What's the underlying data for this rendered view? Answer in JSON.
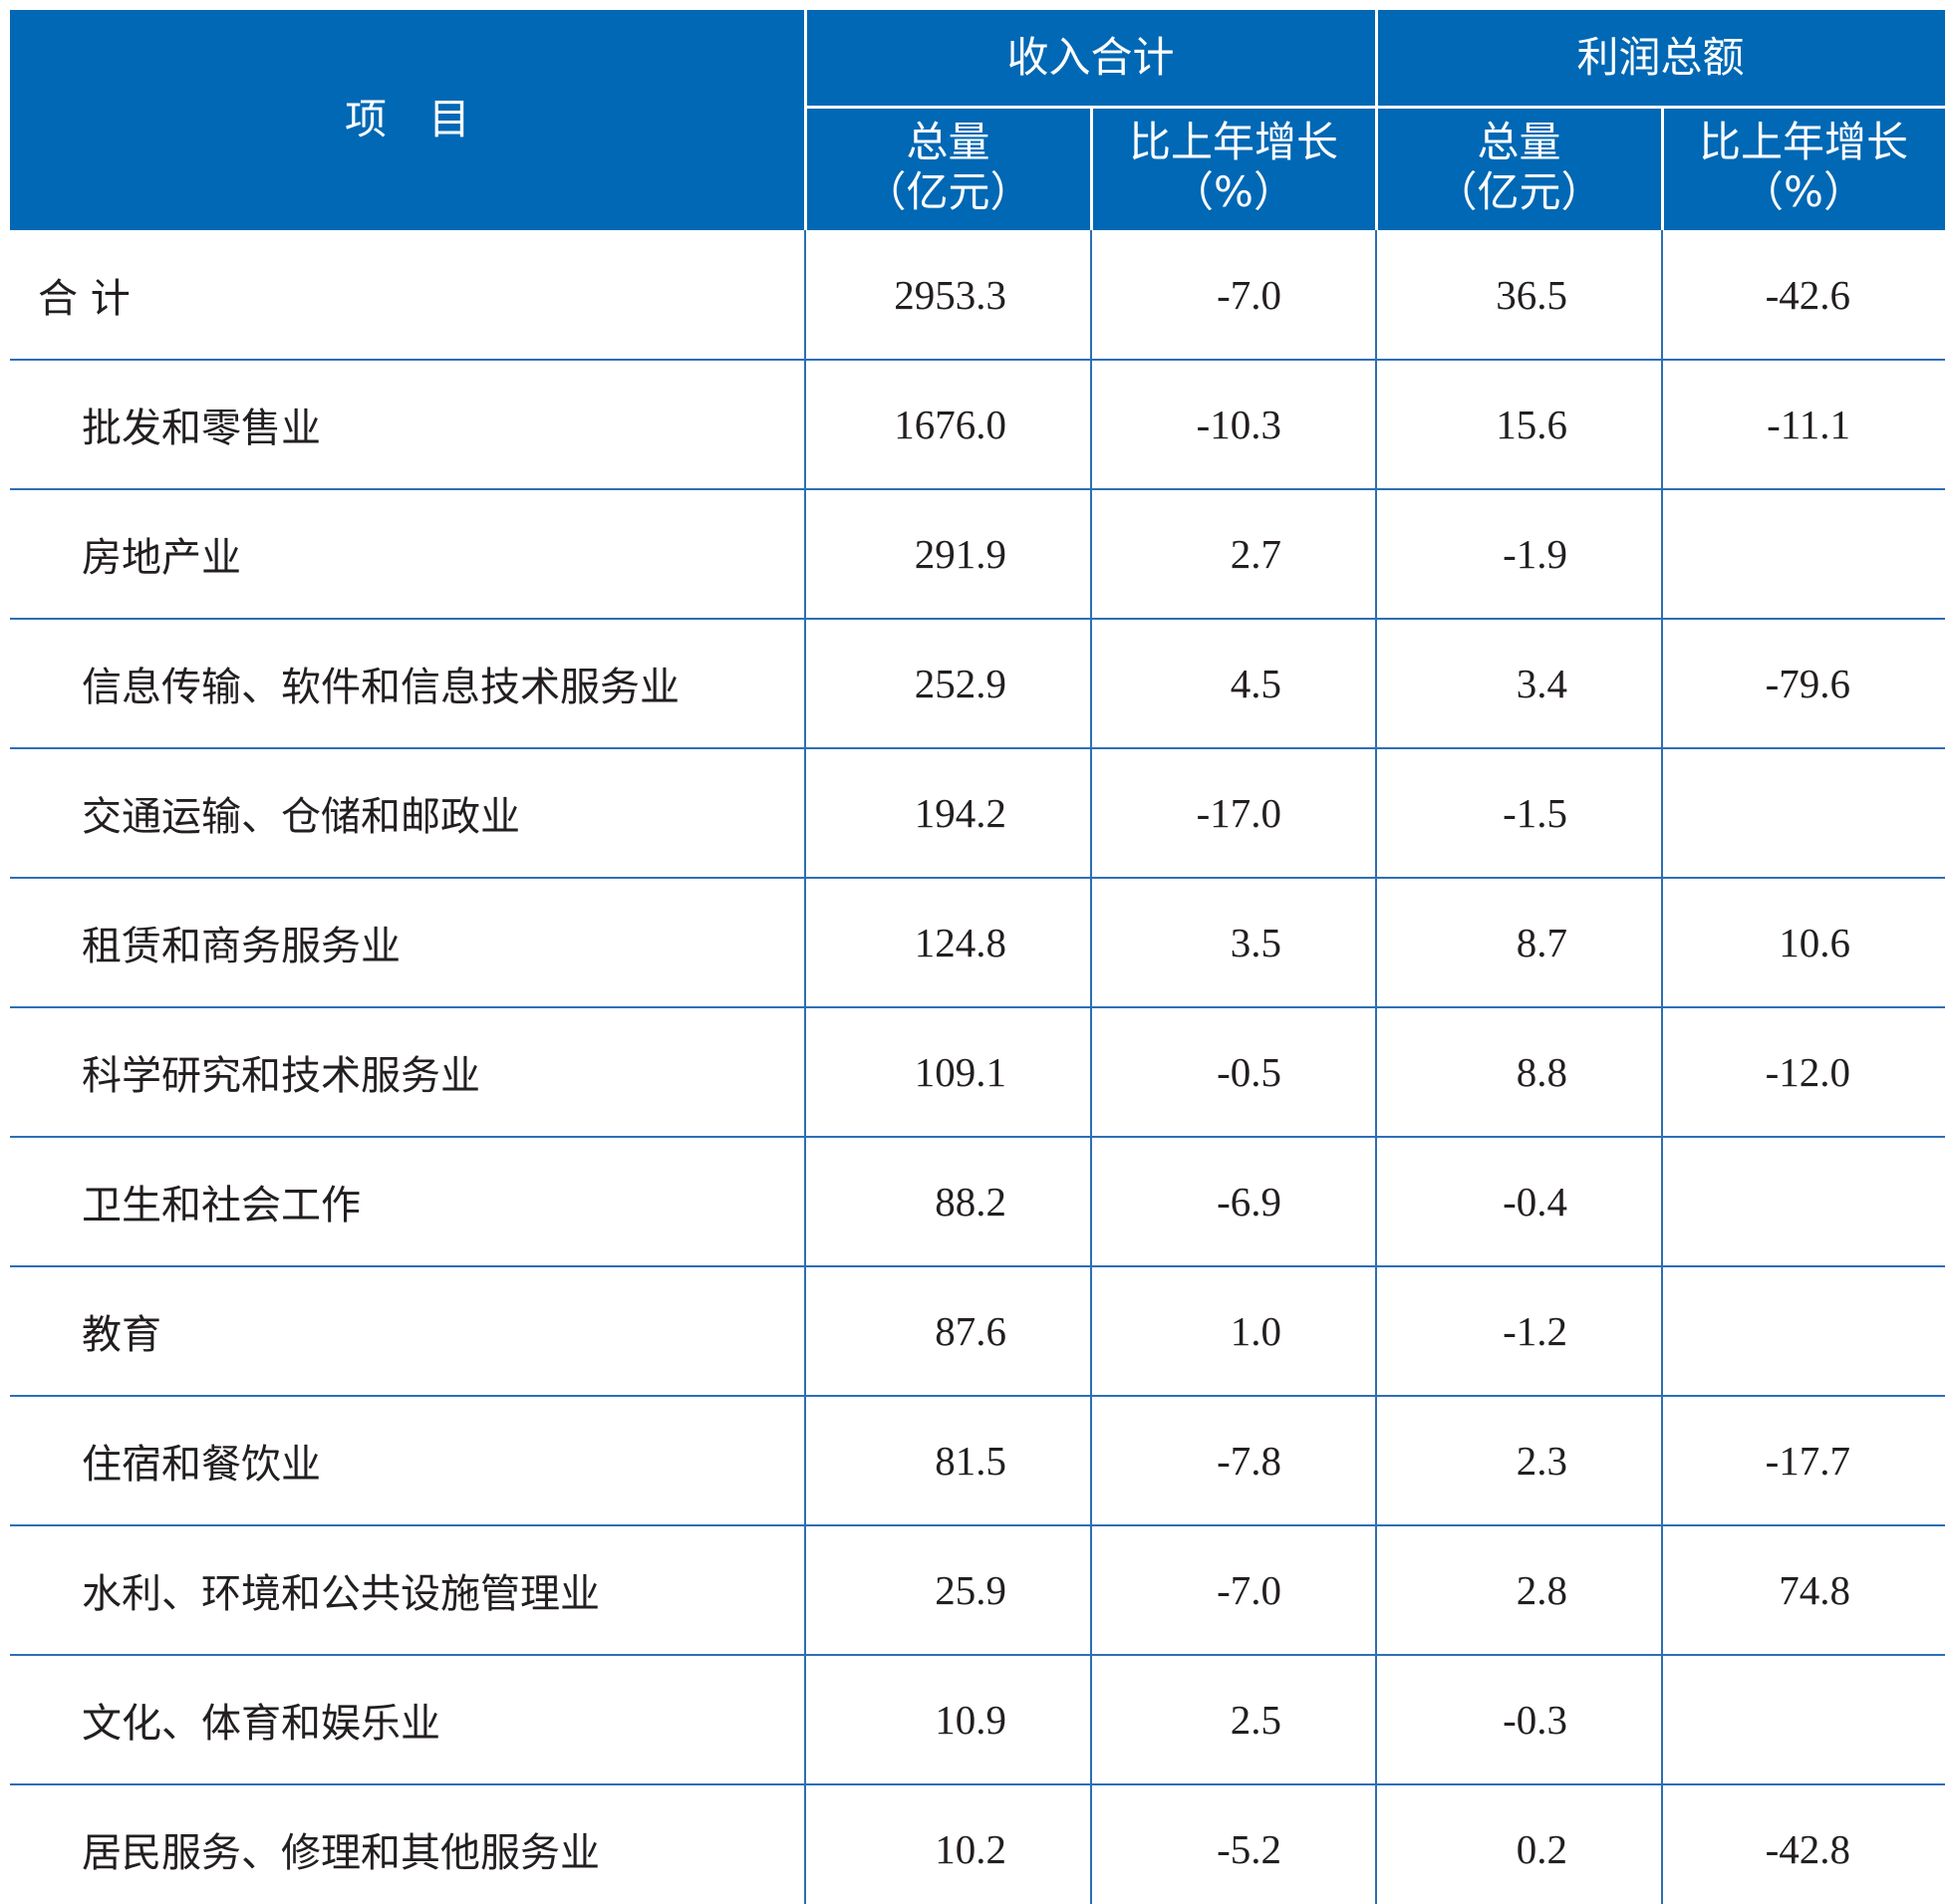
{
  "header": {
    "item": "项　目",
    "groups": [
      "收入合计",
      "利润总额"
    ],
    "columns": [
      {
        "line1": "总量",
        "line2": "（亿元）"
      },
      {
        "line1": "比上年增长",
        "line2": "（%）"
      },
      {
        "line1": "总量",
        "line2": "（亿元）"
      },
      {
        "line1": "比上年增长",
        "line2": "（%）"
      }
    ]
  },
  "table": {
    "rows": [
      {
        "label": "合 计",
        "values": [
          "2953.3",
          "-7.0",
          "36.5",
          "-42.6"
        ]
      },
      {
        "label": "批发和零售业",
        "values": [
          "1676.0",
          "-10.3",
          "15.6",
          "-11.1"
        ]
      },
      {
        "label": "房地产业",
        "values": [
          "291.9",
          "2.7",
          "-1.9",
          null
        ]
      },
      {
        "label": "信息传输、软件和信息技术服务业",
        "values": [
          "252.9",
          "4.5",
          "3.4",
          "-79.6"
        ]
      },
      {
        "label": "交通运输、仓储和邮政业",
        "values": [
          "194.2",
          "-17.0",
          "-1.5",
          null
        ]
      },
      {
        "label": "租赁和商务服务业",
        "values": [
          "124.8",
          "3.5",
          "8.7",
          "10.6"
        ]
      },
      {
        "label": "科学研究和技术服务业",
        "values": [
          "109.1",
          "-0.5",
          "8.8",
          "-12.0"
        ]
      },
      {
        "label": "卫生和社会工作",
        "values": [
          "88.2",
          "-6.9",
          "-0.4",
          null
        ]
      },
      {
        "label": "教育",
        "values": [
          "87.6",
          "1.0",
          "-1.2",
          null
        ]
      },
      {
        "label": "住宿和餐饮业",
        "values": [
          "81.5",
          "-7.8",
          "2.3",
          "-17.7"
        ]
      },
      {
        "label": "水利、环境和公共设施管理业",
        "values": [
          "25.9",
          "-7.0",
          "2.8",
          "74.8"
        ]
      },
      {
        "label": "文化、体育和娱乐业",
        "values": [
          "10.9",
          "2.5",
          "-0.3",
          null
        ]
      },
      {
        "label": "居民服务、修理和其他服务业",
        "values": [
          "10.2",
          "-5.2",
          "0.2",
          "-42.8"
        ]
      }
    ]
  }
}
